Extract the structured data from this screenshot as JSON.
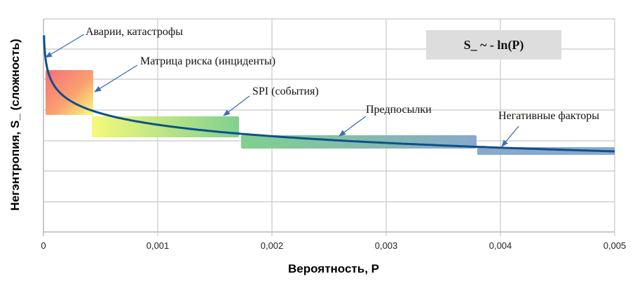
{
  "chart_data": {
    "type": "line",
    "title": "",
    "xlabel": "Вероятность, P",
    "ylabel": "Негэнтропия, S_ (сложность)",
    "xlim": [
      0,
      0.005
    ],
    "x_ticks": [
      "0",
      "0,001",
      "0,002",
      "0,003",
      "0,004",
      "0,005"
    ],
    "y_ticks_labeled": false,
    "grid": true,
    "series": [
      {
        "name": "S_ ~ -ln(P)",
        "formula": "S_ = -ln(P)",
        "color": "#0d4f8b",
        "x": [
          1e-05,
          2e-05,
          5e-05,
          0.0001,
          0.0002,
          0.0003,
          0.0004,
          0.0005,
          0.001,
          0.0015,
          0.002,
          0.0025,
          0.003,
          0.0035,
          0.004,
          0.0045,
          0.005
        ],
        "y": [
          11.51,
          10.82,
          9.9,
          9.21,
          8.52,
          8.11,
          7.82,
          7.6,
          6.91,
          6.5,
          6.21,
          5.99,
          5.81,
          5.65,
          5.52,
          5.4,
          5.3
        ]
      }
    ],
    "regions": [
      {
        "name": "Матрица риска (инциденты)",
        "x_range": [
          2e-05,
          0.00044
        ],
        "gradient": [
          "#f87878",
          "#fbfa80"
        ]
      },
      {
        "name": "SPI (события)",
        "x_range": [
          0.00043,
          0.00172
        ],
        "gradient": [
          "#f5f97a",
          "#80d08e"
        ]
      },
      {
        "name": "Предпосылки",
        "x_range": [
          0.00174,
          0.0038
        ],
        "gradient": [
          "#80d08e",
          "#8aa8cc"
        ]
      },
      {
        "name": "Негативные факторы",
        "x_range": [
          0.0038,
          0.005
        ],
        "gradient": [
          "#8aa8cc",
          "#8aa8cc"
        ]
      }
    ],
    "annotations": [
      "Аварии, катастрофы",
      "Матрица риска (инциденты)",
      "SPI (события)",
      "Предпосылки",
      "Негативные факторы"
    ],
    "legend": "S_ ~ - ln(P)",
    "legend_position": "top-right"
  },
  "labels": {
    "x_axis": "Вероятность, P",
    "y_axis": "Негэнтропия, S_ (сложность)",
    "formula_box": "S_ ~ - ln(P)",
    "ticks": [
      "0",
      "0,001",
      "0,002",
      "0,003",
      "0,004",
      "0,005"
    ],
    "annotations": {
      "accidents": "Аварии, катастрофы",
      "risk_matrix": "Матрица риска (инциденты)",
      "spi": "SPI (события)",
      "precursors": "Предпосылки",
      "negative_factors": "Негативные факторы"
    }
  }
}
